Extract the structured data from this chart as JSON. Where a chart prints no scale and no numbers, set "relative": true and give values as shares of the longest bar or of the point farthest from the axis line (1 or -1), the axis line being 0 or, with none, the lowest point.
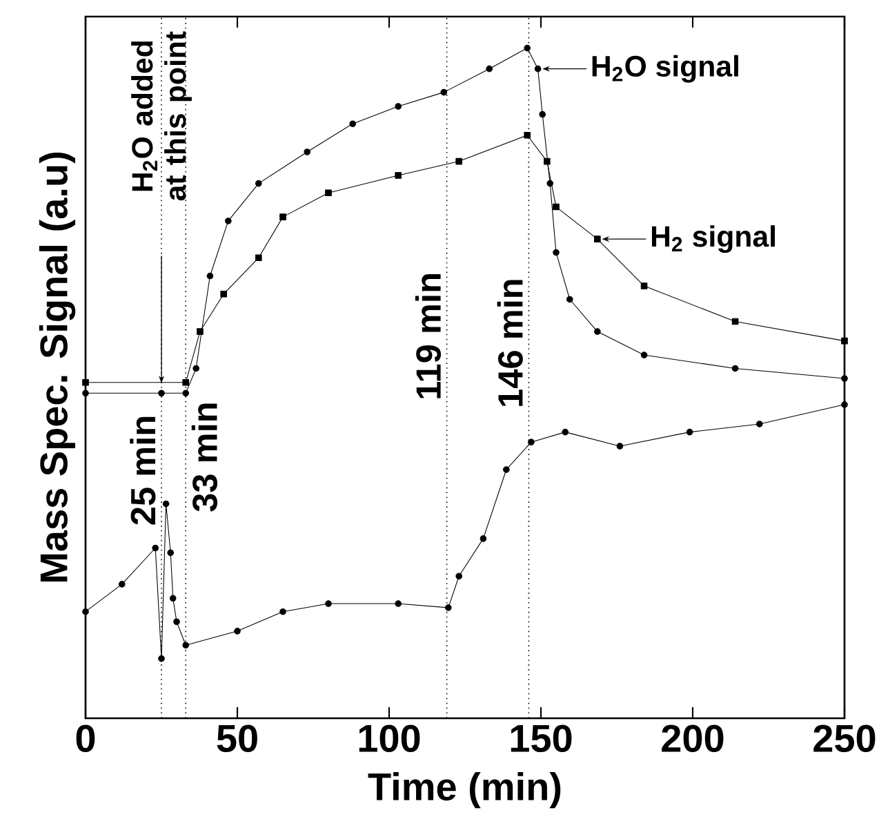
{
  "chart_data": {
    "type": "line",
    "relative": true,
    "xlabel": "Time (min)",
    "ylabel": "Mass Spec. Signal (a.u)",
    "xlim": [
      0,
      250
    ],
    "xticks": [
      0,
      50,
      100,
      150,
      200,
      250
    ],
    "tick_labels": "x",
    "line_style": "solid",
    "series": [
      {
        "name": "H$_{2}$O signal",
        "color": "#000000",
        "marker": "circle",
        "x": [
          0,
          25,
          33,
          36.4,
          41,
          47,
          57,
          73,
          88,
          103,
          118,
          133,
          145.5,
          149,
          150.5,
          153,
          155,
          159.5,
          168.6,
          184,
          214,
          250
        ],
        "values": [
          0.485,
          0.485,
          0.485,
          0.522,
          0.66,
          0.742,
          0.798,
          0.845,
          0.887,
          0.913,
          0.934,
          0.969,
          1.0,
          0.969,
          0.901,
          0.798,
          0.695,
          0.625,
          0.577,
          0.542,
          0.522,
          0.507
        ]
      },
      {
        "name": "H$_{2}$ signal",
        "color": "#000000",
        "marker": "square",
        "x": [
          0,
          33,
          37.7,
          45.5,
          57,
          65,
          80,
          103,
          123,
          145.5,
          152,
          155,
          168.6,
          184,
          214,
          250
        ],
        "values": [
          0.501,
          0.501,
          0.577,
          0.633,
          0.687,
          0.748,
          0.784,
          0.81,
          0.831,
          0.87,
          0.831,
          0.763,
          0.715,
          0.645,
          0.592,
          0.563
        ]
      },
      {
        "color": "#000000",
        "marker": "circle",
        "x": [
          0,
          12,
          23,
          25,
          26.5,
          28,
          28.8,
          30,
          33,
          50,
          65,
          80,
          103,
          119.5,
          123,
          131,
          138.6,
          146.8,
          158,
          176,
          199,
          222,
          250
        ],
        "values": [
          0.159,
          0.2,
          0.254,
          0.089,
          0.32,
          0.247,
          0.179,
          0.144,
          0.109,
          0.13,
          0.159,
          0.171,
          0.171,
          0.165,
          0.212,
          0.268,
          0.371,
          0.412,
          0.427,
          0.406,
          0.427,
          0.439,
          0.468
        ]
      }
    ],
    "ref_lines": [
      {
        "axis": "x",
        "value": 25,
        "label": "25 min",
        "line_style": "dotted"
      },
      {
        "axis": "x",
        "value": 33,
        "label": "33 min",
        "line_style": "dotted"
      },
      {
        "axis": "x",
        "value": 119,
        "label": "119 min",
        "line_style": "dotted"
      },
      {
        "axis": "x",
        "value": 146,
        "label": "146 min",
        "line_style": "dotted"
      }
    ],
    "annotations": [
      "H$_{2}$O added at this point"
    ]
  }
}
